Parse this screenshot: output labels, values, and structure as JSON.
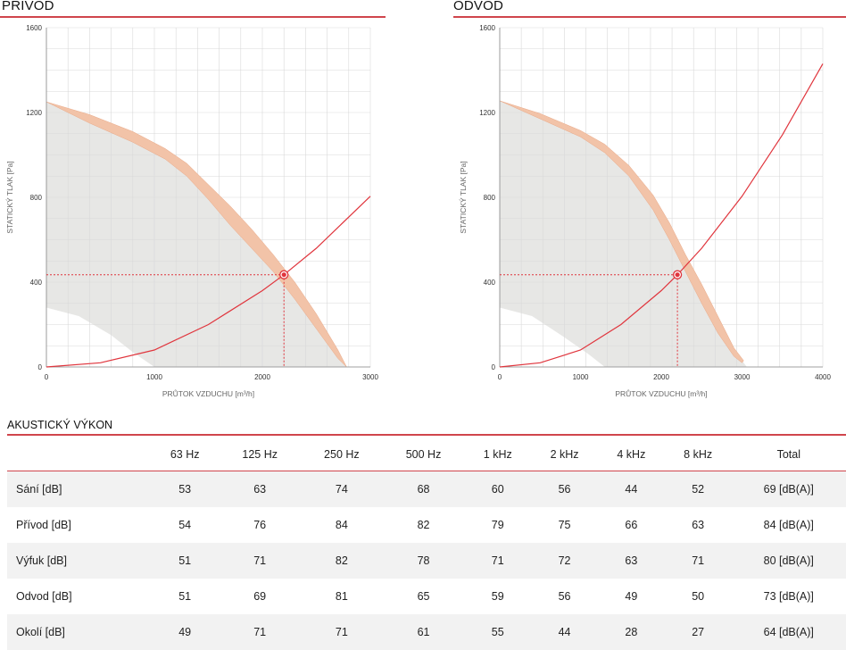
{
  "chart_data": [
    {
      "type": "line",
      "title": "PŘÍVOD",
      "xlabel": "PRŮTOK VZDUCHU [m³/h]",
      "ylabel": "STATICKÝ TLAK [Pa]",
      "xlim": [
        0,
        3000
      ],
      "ylim": [
        0,
        1600
      ],
      "xticks": [
        "0",
        "1000",
        "2000",
        "3000"
      ],
      "yticks": [
        "0",
        "400",
        "800",
        "1200",
        "1600"
      ],
      "grid": true,
      "operating_point": {
        "x": 2200,
        "y": 435
      },
      "series": [
        {
          "role": "fan-curve-upper",
          "x": [
            0,
            400,
            800,
            1100,
            1300,
            1500,
            1700,
            1900,
            2100,
            2300,
            2500,
            2700,
            2780
          ],
          "y": [
            1250,
            1190,
            1110,
            1030,
            960,
            860,
            760,
            650,
            530,
            400,
            250,
            80,
            0
          ]
        },
        {
          "role": "fan-curve-lower",
          "x": [
            0,
            400,
            800,
            1100,
            1300,
            1500,
            1700,
            1900,
            2100,
            2300,
            2500,
            2700,
            2780
          ],
          "y": [
            1250,
            1150,
            1060,
            980,
            900,
            790,
            670,
            560,
            450,
            320,
            180,
            40,
            0
          ]
        },
        {
          "role": "system-curve",
          "x": [
            0,
            500,
            1000,
            1500,
            2000,
            2200,
            2500,
            3000
          ],
          "y": [
            0,
            20,
            80,
            200,
            360,
            435,
            560,
            805
          ]
        },
        {
          "role": "working-area-outer",
          "x": [
            0,
            1000,
            1300,
            1500,
            1700,
            1900,
            2100,
            2300,
            2500,
            2700,
            2780
          ],
          "y": [
            1250,
            1050,
            960,
            860,
            760,
            650,
            530,
            400,
            250,
            80,
            0
          ]
        },
        {
          "role": "working-area-inner",
          "x": [
            0,
            300,
            600,
            800,
            1000
          ],
          "y": [
            280,
            240,
            150,
            70,
            0
          ]
        }
      ]
    },
    {
      "type": "line",
      "title": "ODVOD",
      "xlabel": "PRŮTOK VZDUCHU [m³/h]",
      "ylabel": "STATICKÝ TLAK [Pa]",
      "xlim": [
        0,
        4000
      ],
      "ylim": [
        0,
        1600
      ],
      "xticks": [
        "0",
        "1000",
        "2000",
        "3000",
        "4000"
      ],
      "yticks": [
        "0",
        "400",
        "800",
        "1200",
        "1600"
      ],
      "grid": true,
      "operating_point": {
        "x": 2200,
        "y": 435
      },
      "series": [
        {
          "role": "fan-curve-upper",
          "x": [
            0,
            500,
            1000,
            1300,
            1600,
            1900,
            2100,
            2300,
            2500,
            2700,
            2900,
            3020
          ],
          "y": [
            1255,
            1195,
            1115,
            1050,
            950,
            810,
            680,
            530,
            390,
            240,
            90,
            30
          ]
        },
        {
          "role": "fan-curve-lower",
          "x": [
            0,
            500,
            1000,
            1300,
            1600,
            1900,
            2100,
            2300,
            2500,
            2700,
            2900,
            3000
          ],
          "y": [
            1255,
            1170,
            1085,
            1010,
            900,
            740,
            600,
            450,
            300,
            160,
            50,
            20
          ]
        },
        {
          "role": "system-curve",
          "x": [
            0,
            500,
            1000,
            1500,
            2000,
            2200,
            2500,
            3000,
            3500,
            4000
          ],
          "y": [
            0,
            20,
            80,
            200,
            360,
            435,
            560,
            805,
            1095,
            1430
          ]
        },
        {
          "role": "working-area-outer",
          "x": [
            0,
            1000,
            1300,
            1600,
            1900,
            2100,
            2300,
            2500,
            2700,
            2900,
            3000,
            3060
          ],
          "y": [
            1255,
            1110,
            1050,
            950,
            810,
            680,
            530,
            390,
            240,
            90,
            30,
            0
          ]
        },
        {
          "role": "working-area-inner",
          "x": [
            0,
            400,
            800,
            1100,
            1300
          ],
          "y": [
            280,
            240,
            140,
            60,
            0
          ]
        }
      ]
    }
  ],
  "colors": {
    "accent": "#d0454c",
    "system_curve": "#e0353d",
    "fan_band": "#f2c3a8",
    "fan_band_edge": "#e9a987",
    "working_area": "#e7e7e5",
    "grid": "#d9d9d9",
    "row_shade": "#f2f2f2"
  },
  "acoustic": {
    "title": "AKUSTICKÝ VÝKON",
    "headers": [
      "",
      "63 Hz",
      "125 Hz",
      "250 Hz",
      "500 Hz",
      "1 kHz",
      "2 kHz",
      "4 kHz",
      "8 kHz",
      "Total"
    ],
    "rows": [
      [
        "Sání [dB]",
        "53",
        "63",
        "74",
        "68",
        "60",
        "56",
        "44",
        "52",
        "69 [dB(A)]"
      ],
      [
        "Přívod [dB]",
        "54",
        "76",
        "84",
        "82",
        "79",
        "75",
        "66",
        "63",
        "84 [dB(A)]"
      ],
      [
        "Výfuk [dB]",
        "51",
        "71",
        "82",
        "78",
        "71",
        "72",
        "63",
        "71",
        "80 [dB(A)]"
      ],
      [
        "Odvod [dB]",
        "51",
        "69",
        "81",
        "65",
        "59",
        "56",
        "49",
        "50",
        "73 [dB(A)]"
      ],
      [
        "Okolí [dB]",
        "49",
        "71",
        "71",
        "61",
        "55",
        "44",
        "28",
        "27",
        "64 [dB(A)]"
      ]
    ]
  }
}
